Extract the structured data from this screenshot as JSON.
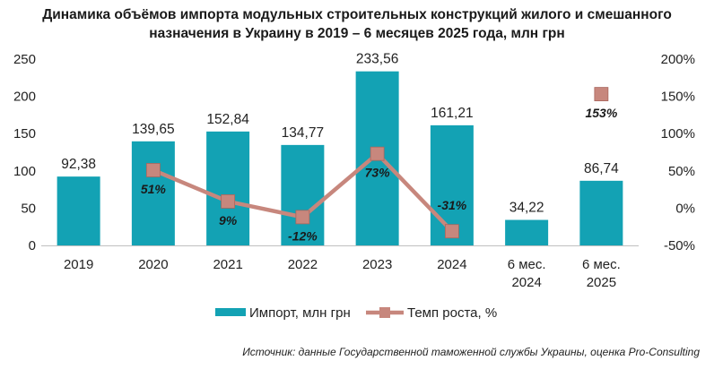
{
  "title": {
    "line1": "Динамика объёмов импорта модульных строительных конструкций жилого и смешанного",
    "line2": "назначения в Украину в 2019 – 6 месяцев 2025 года, млн грн"
  },
  "source": "Источник: данные Государственной таможенной службы Украины, оценка Pro-Consulting",
  "colors": {
    "bar": "#13a2b4",
    "line": "#c7877d",
    "marker": "#c7877d"
  },
  "chart_data": {
    "type": "bar+line",
    "categories": [
      [
        "2019"
      ],
      [
        "2020"
      ],
      [
        "2021"
      ],
      [
        "2022"
      ],
      [
        "2023"
      ],
      [
        "2024"
      ],
      [
        "6 мес.",
        "2024"
      ],
      [
        "6 мес.",
        "2025"
      ]
    ],
    "series": [
      {
        "name": "Импорт, млн грн",
        "type": "bar",
        "axis": "left",
        "values": [
          92.38,
          139.65,
          152.84,
          134.77,
          233.56,
          161.21,
          34.22,
          86.74
        ],
        "labels": [
          "92,38",
          "139,65",
          "152,84",
          "134,77",
          "233,56",
          "161,21",
          "34,22",
          "86,74"
        ]
      },
      {
        "name": "Темп роста, %",
        "type": "line",
        "axis": "right",
        "segments": [
          [
            1,
            2,
            3,
            4,
            5
          ],
          [
            7
          ]
        ],
        "values": [
          null,
          51,
          9,
          -12,
          73,
          -31,
          null,
          153
        ],
        "labels": [
          null,
          "51%",
          "9%",
          "-12%",
          "73%",
          "-31%",
          null,
          "153%"
        ]
      }
    ],
    "y_left": {
      "min": 0,
      "max": 250,
      "ticks": [
        "0",
        "50",
        "100",
        "150",
        "200",
        "250"
      ]
    },
    "y_right": {
      "min": -50,
      "max": 200,
      "ticks": [
        "-50%",
        "0%",
        "50%",
        "100%",
        "150%",
        "200%"
      ]
    },
    "legend_position": "bottom",
    "grid": false
  }
}
